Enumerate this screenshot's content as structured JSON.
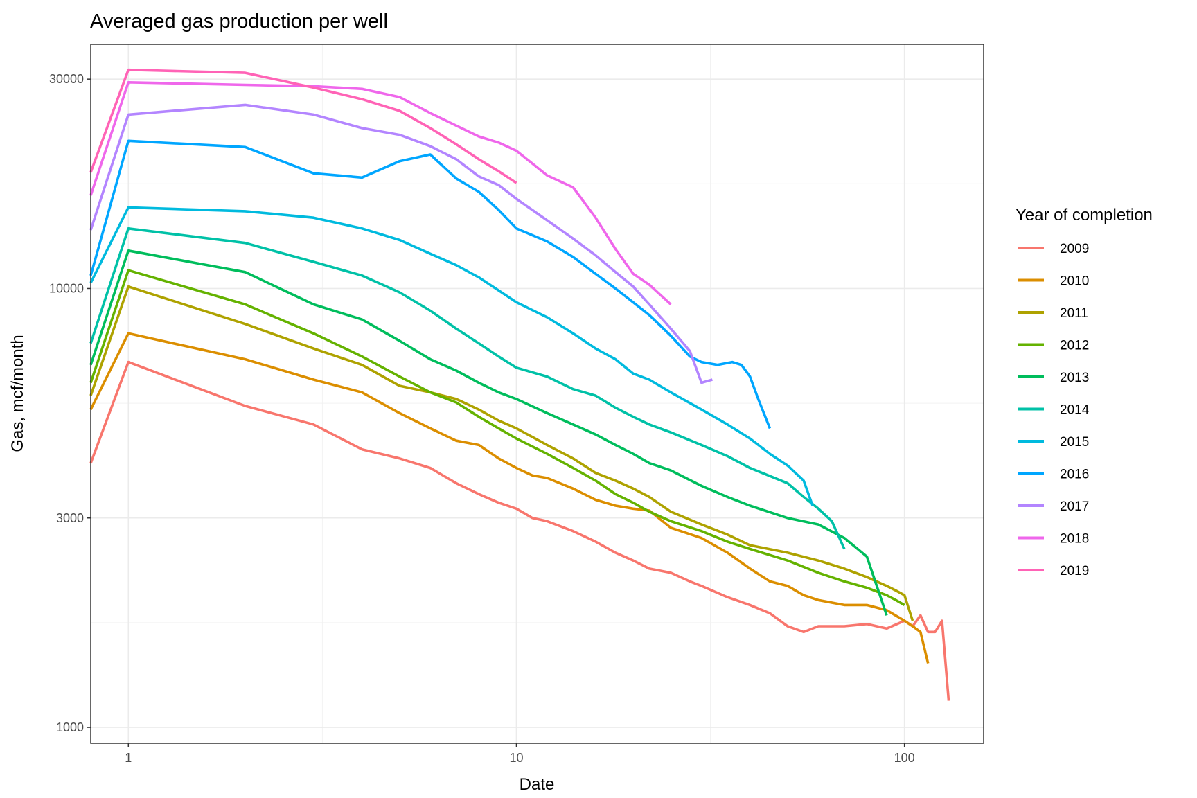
{
  "chart_data": {
    "type": "line",
    "title": "Averaged gas production per well",
    "xlabel": "Date",
    "ylabel": "Gas, mcf/month",
    "x_scale": "log10",
    "y_scale": "log10",
    "xlim": [
      0.8,
      160
    ],
    "ylim": [
      920,
      36000
    ],
    "x_ticks": [
      1,
      10,
      100
    ],
    "x_tick_labels": [
      "1",
      "10",
      "100"
    ],
    "y_ticks": [
      1000,
      3000,
      10000,
      30000
    ],
    "y_tick_labels": [
      "1000",
      "3000",
      "10000",
      "30000"
    ],
    "grid": true,
    "legend": {
      "title": "Year of completion",
      "position": "right"
    },
    "series": [
      {
        "name": "2009",
        "color": "#F8766D",
        "x": [
          0.8,
          1,
          2,
          3,
          4,
          5,
          6,
          7,
          8,
          9,
          10,
          11,
          12,
          14,
          16,
          18,
          20,
          22,
          25,
          28,
          30,
          35,
          40,
          45,
          50,
          55,
          60,
          70,
          80,
          90,
          100,
          105,
          110,
          115,
          120,
          125,
          130
        ],
        "y": [
          4000,
          6800,
          5400,
          4900,
          4300,
          4100,
          3900,
          3600,
          3400,
          3250,
          3150,
          3000,
          2950,
          2800,
          2650,
          2500,
          2400,
          2300,
          2250,
          2150,
          2100,
          1980,
          1900,
          1820,
          1700,
          1650,
          1700,
          1700,
          1720,
          1680,
          1750,
          1700,
          1800,
          1650,
          1650,
          1750,
          1150
        ]
      },
      {
        "name": "2010",
        "color": "#DB8E00",
        "x": [
          0.8,
          1,
          2,
          3,
          4,
          5,
          6,
          7,
          8,
          9,
          10,
          11,
          12,
          14,
          16,
          18,
          20,
          22,
          25,
          30,
          35,
          40,
          45,
          50,
          55,
          60,
          70,
          80,
          90,
          100,
          105,
          110,
          115
        ],
        "y": [
          5300,
          7900,
          6900,
          6200,
          5800,
          5200,
          4800,
          4500,
          4400,
          4100,
          3900,
          3750,
          3700,
          3500,
          3300,
          3200,
          3150,
          3120,
          2850,
          2700,
          2500,
          2300,
          2150,
          2100,
          2000,
          1950,
          1900,
          1900,
          1850,
          1750,
          1700,
          1650,
          1400
        ]
      },
      {
        "name": "2011",
        "color": "#AEA200",
        "x": [
          0.8,
          1,
          2,
          3,
          4,
          5,
          6,
          7,
          8,
          9,
          10,
          12,
          14,
          16,
          18,
          20,
          22,
          25,
          30,
          35,
          40,
          50,
          60,
          70,
          80,
          90,
          95,
          100,
          105
        ],
        "y": [
          5700,
          10100,
          8300,
          7300,
          6700,
          6000,
          5800,
          5600,
          5300,
          5000,
          4800,
          4400,
          4100,
          3800,
          3650,
          3500,
          3350,
          3100,
          2900,
          2750,
          2600,
          2500,
          2400,
          2300,
          2200,
          2100,
          2050,
          2000,
          1750
        ]
      },
      {
        "name": "2012",
        "color": "#64B200",
        "x": [
          0.8,
          1,
          2,
          3,
          4,
          5,
          6,
          7,
          8,
          9,
          10,
          12,
          14,
          16,
          18,
          20,
          22,
          25,
          30,
          35,
          40,
          50,
          60,
          70,
          80,
          90,
          95,
          100
        ],
        "y": [
          6100,
          11000,
          9200,
          7900,
          7000,
          6300,
          5800,
          5500,
          5100,
          4800,
          4550,
          4200,
          3900,
          3650,
          3400,
          3250,
          3100,
          2950,
          2800,
          2650,
          2550,
          2400,
          2250,
          2150,
          2080,
          2000,
          1950,
          1900
        ]
      },
      {
        "name": "2013",
        "color": "#00BD5C",
        "x": [
          0.8,
          1,
          2,
          3,
          4,
          5,
          6,
          7,
          8,
          9,
          10,
          12,
          14,
          16,
          18,
          20,
          22,
          25,
          30,
          35,
          40,
          50,
          60,
          70,
          80,
          90
        ],
        "y": [
          6700,
          12200,
          10900,
          9200,
          8500,
          7600,
          6900,
          6500,
          6100,
          5800,
          5600,
          5200,
          4900,
          4650,
          4400,
          4200,
          4000,
          3850,
          3550,
          3350,
          3200,
          3000,
          2900,
          2700,
          2450,
          1800
        ]
      },
      {
        "name": "2014",
        "color": "#00C1A7",
        "x": [
          0.8,
          1,
          2,
          3,
          4,
          5,
          6,
          7,
          8,
          9,
          10,
          12,
          14,
          16,
          18,
          20,
          22,
          25,
          30,
          35,
          40,
          50,
          55,
          60,
          65,
          70
        ],
        "y": [
          7500,
          13700,
          12700,
          11500,
          10700,
          9800,
          8900,
          8100,
          7500,
          7000,
          6600,
          6300,
          5900,
          5700,
          5350,
          5100,
          4900,
          4700,
          4400,
          4150,
          3900,
          3600,
          3350,
          3150,
          2950,
          2550
        ]
      },
      {
        "name": "2015",
        "color": "#00BADE",
        "x": [
          0.8,
          1,
          2,
          3,
          4,
          5,
          6,
          7,
          8,
          9,
          10,
          12,
          14,
          16,
          18,
          20,
          22,
          25,
          30,
          35,
          40,
          45,
          50,
          55,
          58
        ],
        "y": [
          10300,
          15300,
          15000,
          14500,
          13700,
          12900,
          12000,
          11300,
          10600,
          9900,
          9300,
          8600,
          7900,
          7300,
          6900,
          6400,
          6200,
          5800,
          5300,
          4900,
          4550,
          4200,
          3950,
          3650,
          3200
        ]
      },
      {
        "name": "2016",
        "color": "#00A6FF",
        "x": [
          0.8,
          1,
          2,
          3,
          4,
          5,
          6,
          7,
          8,
          9,
          10,
          12,
          14,
          16,
          18,
          20,
          22,
          25,
          28,
          30,
          33,
          36,
          38,
          40,
          42,
          45
        ],
        "y": [
          10700,
          21700,
          21000,
          18300,
          17900,
          19500,
          20200,
          17800,
          16600,
          15100,
          13700,
          12800,
          11800,
          10800,
          10000,
          9300,
          8700,
          7800,
          7000,
          6800,
          6700,
          6800,
          6700,
          6300,
          5600,
          4800
        ]
      },
      {
        "name": "2017",
        "color": "#B385FF",
        "x": [
          0.8,
          1,
          2,
          3,
          4,
          5,
          6,
          7,
          8,
          9,
          10,
          12,
          14,
          16,
          18,
          20,
          22,
          25,
          28,
          30,
          32
        ],
        "y": [
          13600,
          24900,
          26200,
          24900,
          23200,
          22400,
          21100,
          19700,
          18000,
          17200,
          16000,
          14300,
          13000,
          11900,
          10900,
          10100,
          9200,
          8100,
          7200,
          6100,
          6200
        ]
      },
      {
        "name": "2018",
        "color": "#EF67EB",
        "x": [
          0.8,
          1,
          2,
          3,
          4,
          5,
          6,
          7,
          8,
          9,
          10,
          12,
          14,
          16,
          18,
          20,
          22,
          25
        ],
        "y": [
          16300,
          29500,
          29100,
          28900,
          28500,
          27300,
          25100,
          23500,
          22200,
          21500,
          20600,
          18100,
          17000,
          14500,
          12300,
          10800,
          10200,
          9200
        ]
      },
      {
        "name": "2019",
        "color": "#FF63B6",
        "x": [
          0.8,
          1,
          2,
          3,
          4,
          5,
          6,
          7,
          8,
          9,
          10
        ],
        "y": [
          18400,
          31500,
          31000,
          28700,
          27000,
          25400,
          23200,
          21300,
          19700,
          18500,
          17400
        ]
      }
    ]
  }
}
